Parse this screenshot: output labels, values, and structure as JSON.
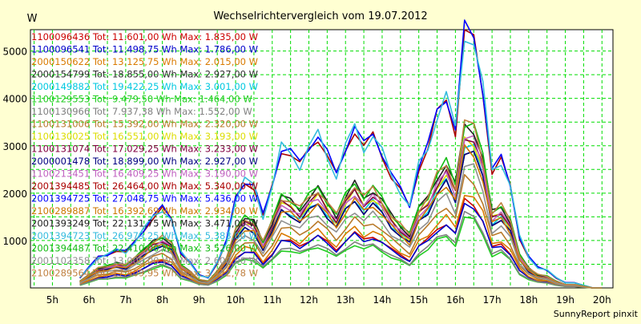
{
  "chart_data": {
    "type": "line",
    "title": "Wechselrichtervergleich vom 19.07.2012",
    "ylabel": "W",
    "footer": "SunnyReport pinxit",
    "grid": true,
    "legend_placement": "top-left",
    "ylim": [
      0,
      5450
    ],
    "xlim": [
      4.4,
      20.3
    ],
    "yticks": [
      1000,
      2000,
      3000,
      4000,
      5000
    ],
    "xticks": [
      "5h",
      "6h",
      "7h",
      "8h",
      "9h",
      "10h",
      "11h",
      "12h",
      "13h",
      "14h",
      "15h",
      "16h",
      "17h",
      "18h",
      "19h",
      "20h"
    ],
    "x": [
      5.75,
      6.0,
      6.25,
      6.5,
      6.75,
      7.0,
      7.25,
      7.5,
      7.75,
      8.0,
      8.25,
      8.5,
      8.75,
      9.0,
      9.25,
      9.5,
      9.75,
      10.0,
      10.25,
      10.5,
      10.75,
      11.0,
      11.25,
      11.5,
      11.75,
      12.0,
      12.25,
      12.5,
      12.75,
      13.0,
      13.25,
      13.5,
      13.75,
      14.0,
      14.25,
      14.5,
      14.75,
      15.0,
      15.25,
      15.5,
      15.75,
      16.0,
      16.25,
      16.5,
      16.75,
      17.0,
      17.25,
      17.5,
      17.75,
      18.0,
      18.25,
      18.5,
      18.75,
      19.0,
      19.25,
      19.5,
      19.75,
      20.0
    ],
    "series": [
      {
        "name": "1100096436 Tot: 11.601,00 Wh Max: 1.835,00 W",
        "color": "#cc0000",
        "max": 1835
      },
      {
        "name": "1100096541 Tot: 11.498,75 Wh Max: 1.786,00 W",
        "color": "#0000cc",
        "max": 1786
      },
      {
        "name": "2000150622 Tot: 13.125,75 Wh Max: 2.015,00 W",
        "color": "#d97a00",
        "max": 2015
      },
      {
        "name": "2000154799 Tot: 18.855,00 Wh Max: 2.927,00 W",
        "color": "#303030",
        "max": 2927
      },
      {
        "name": "2000149882 Tot: 19.422,25 Wh Max: 3.001,00 W",
        "color": "#00c8e0",
        "max": 3001
      },
      {
        "name": "1100129553 Tot: 9.479,50 Wh Max: 1.464,00 W",
        "color": "#22cc22",
        "max": 1464
      },
      {
        "name": "1100130966 Tot: 7.937,38 Wh Max: 1.552,00 W",
        "color": "#808080",
        "max": 1552
      },
      {
        "name": "1100131006 Tot: 15.392,00 Wh Max: 2.320,00 W",
        "color": "#b87a2a",
        "max": 2320
      },
      {
        "name": "1100130025 Tot: 16.551,00 Wh Max: 3.193,00 W",
        "color": "#dddd00",
        "max": 3193
      },
      {
        "name": "1100131074 Tot: 17.029,25 Wh Max: 3.233,00 W",
        "color": "#800040",
        "max": 3233
      },
      {
        "name": "2000001478 Tot: 18.899,00 Wh Max: 2.927,00 W",
        "color": "#000080",
        "max": 2927
      },
      {
        "name": "1100213451 Tot: 16.409,25 Wh Max: 3.190,00 W",
        "color": "#c060c0",
        "max": 3190
      },
      {
        "name": "2001394485 Tot: 26.464,00 Wh Max: 5.340,00 W",
        "color": "#aa0000",
        "max": 5340
      },
      {
        "name": "2001394725 Tot: 27.048,75 Wh Max: 5.436,00 W",
        "color": "#0000ff",
        "max": 5436
      },
      {
        "name": "2100289887 Tot: 16.392,69 Wh Max: 2.934,00 W",
        "color": "#cc7700",
        "max": 2934
      },
      {
        "name": "2001393249 Tot: 22.131,75 Wh Max: 3.471,00 W",
        "color": "#202020",
        "max": 3471
      },
      {
        "name": "2001394723 Tot: 26.979,25 Wh Max: 5.383,00 W",
        "color": "#33bbdd",
        "max": 5383
      },
      {
        "name": "2001394487 Tot: 22.410,00 Wh Max: 3.526,00 W",
        "color": "#11bb11",
        "max": 3526
      },
      {
        "name": "2001102358 Tot: 13.000,00 Wh Max: 2.600,00 W",
        "color": "#909090",
        "max": 2600
      },
      {
        "name": "2100289564 Tot: 17.409,95 Wh Max: 3.472,78 W",
        "color": "#c08040",
        "max": 3473
      }
    ]
  }
}
